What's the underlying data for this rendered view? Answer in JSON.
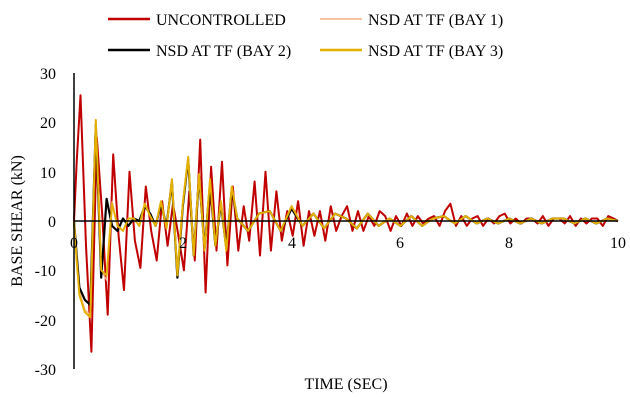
{
  "chart_data": {
    "type": "line",
    "title": "",
    "xlabel": "TIME (SEC)",
    "ylabel": "BASE SHEAR (kN)",
    "xlim": [
      0,
      10
    ],
    "ylim": [
      -30,
      30
    ],
    "x_ticks": [
      0,
      2,
      4,
      6,
      8,
      10
    ],
    "y_ticks": [
      30,
      20,
      10,
      0,
      -10,
      -20,
      -30
    ],
    "x_tick_labels": [
      "0",
      "2",
      "4",
      "6",
      "8",
      "10"
    ],
    "y_tick_labels": [
      "30",
      "20",
      "10",
      "0",
      "-10",
      "-20",
      "-30"
    ],
    "grid": false,
    "legend_position": "top",
    "series": [
      {
        "name": "UNCONTROLLED",
        "color": "#c00000",
        "x": [
          0,
          0.05,
          0.12,
          0.22,
          0.32,
          0.42,
          0.52,
          0.62,
          0.72,
          0.82,
          0.92,
          1.02,
          1.12,
          1.22,
          1.32,
          1.42,
          1.52,
          1.62,
          1.72,
          1.82,
          1.92,
          2.02,
          2.12,
          2.22,
          2.32,
          2.42,
          2.52,
          2.62,
          2.72,
          2.82,
          2.92,
          3.02,
          3.12,
          3.22,
          3.32,
          3.42,
          3.52,
          3.62,
          3.72,
          3.82,
          3.92,
          4.02,
          4.12,
          4.22,
          4.32,
          4.42,
          4.52,
          4.62,
          4.72,
          4.82,
          4.92,
          5.02,
          5.12,
          5.22,
          5.32,
          5.42,
          5.52,
          5.62,
          5.72,
          5.82,
          5.92,
          6.02,
          6.12,
          6.22,
          6.32,
          6.42,
          6.52,
          6.62,
          6.72,
          6.82,
          6.92,
          7.02,
          7.12,
          7.22,
          7.32,
          7.42,
          7.52,
          7.62,
          7.72,
          7.82,
          7.92,
          8.02,
          8.12,
          8.22,
          8.32,
          8.42,
          8.52,
          8.62,
          8.72,
          8.82,
          8.92,
          9.02,
          9.12,
          9.22,
          9.32,
          9.42,
          9.52,
          9.62,
          9.72,
          9.82,
          9.92,
          10.0
        ],
        "y": [
          0,
          12,
          25.5,
          -5,
          -26.5,
          17,
          1,
          -19,
          13.5,
          -3,
          -14,
          10,
          -4,
          -9.5,
          7,
          -2,
          -8,
          4,
          -5,
          3.5,
          -3,
          -10,
          6,
          -8,
          16.5,
          -14.5,
          11,
          -6,
          12,
          -9,
          7,
          -6,
          3,
          -4,
          8,
          -7,
          10,
          -6,
          6,
          -4,
          2,
          -3,
          4,
          -5,
          2,
          -3,
          2,
          -4,
          3,
          -2,
          1,
          3,
          -2,
          2,
          -2,
          1,
          -1,
          2,
          1,
          -2,
          1,
          -1,
          1.5,
          -1,
          1,
          -0.5,
          0.5,
          1,
          -1,
          2,
          3.5,
          -1,
          1,
          -1,
          0.5,
          1,
          -1,
          0.5,
          -0.5,
          1,
          1.5,
          -0.5,
          0.5,
          -0.5,
          0.5,
          0.5,
          -0.5,
          1,
          -1,
          0.5,
          0.5,
          -0.5,
          1,
          -1,
          0.5,
          -0.5,
          0.5,
          0.5,
          -1,
          1,
          0.5,
          0
        ]
      },
      {
        "name": "NSD AT TF (BAY 1)",
        "color": "#f4b183",
        "x": [
          0,
          0.05,
          0.1,
          0.2,
          0.3,
          0.4,
          0.5,
          0.6,
          0.7,
          0.8,
          0.9,
          1.0,
          1.1,
          1.2,
          1.3,
          1.4,
          1.5,
          1.6,
          1.7,
          1.8,
          1.9,
          2.0,
          2.1,
          2.2,
          2.3,
          2.4,
          2.5,
          2.6,
          2.7,
          2.8,
          2.9,
          3.0,
          3.2,
          3.4,
          3.6,
          3.8,
          4.0,
          4.2,
          4.4,
          4.6,
          4.8,
          5.0,
          5.2,
          5.4,
          5.6,
          5.8,
          6.0,
          6.2,
          6.4,
          6.6,
          6.8,
          7.0,
          7.2,
          7.4,
          7.6,
          7.8,
          8.0,
          8.2,
          8.4,
          8.6,
          8.8,
          9.0,
          9.2,
          9.4,
          9.6,
          9.8,
          10.0
        ],
        "y": [
          0,
          -8,
          -14,
          -18,
          -19,
          20,
          -10,
          -12,
          4,
          -1,
          -2,
          0.5,
          0.5,
          -1,
          3.5,
          1,
          -1,
          4,
          -1,
          8.5,
          -11,
          3.5,
          13,
          -7,
          9.5,
          -6,
          8,
          -5,
          4,
          -6,
          7,
          0.5,
          -2,
          1.5,
          2,
          -2,
          3,
          -1,
          1.5,
          -1.5,
          1.5,
          0.5,
          -1.5,
          1.5,
          -1,
          0.5,
          -1,
          1,
          -1,
          0.5,
          1,
          -0.5,
          1,
          -0.5,
          0.5,
          -0.5,
          0.5,
          -0.5,
          0.5,
          -0.5,
          0.5,
          0.5,
          -0.5,
          0.5,
          -0.5,
          0.5,
          0
        ]
      },
      {
        "name": "NSD AT TF (BAY 2)",
        "color": "#000000",
        "x": [
          0,
          0.05,
          0.1,
          0.2,
          0.3,
          0.4,
          0.5,
          0.6,
          0.7,
          0.8,
          0.9,
          1.0,
          1.1,
          1.2,
          1.3,
          1.4,
          1.5,
          1.6,
          1.7,
          1.8,
          1.9,
          2.0,
          2.1,
          2.2,
          2.3,
          2.4,
          2.5,
          2.6,
          2.7,
          2.8,
          2.9,
          3.0,
          3.2,
          3.4,
          3.6,
          3.8,
          4.0,
          4.2,
          4.4,
          4.6,
          4.8,
          5.0,
          5.2,
          5.4,
          5.6,
          5.8,
          6.0,
          6.2,
          6.4,
          6.6,
          6.8,
          7.0,
          7.2,
          7.4,
          7.6,
          7.8,
          8.0,
          8.2,
          8.4,
          8.6,
          8.8,
          9.0,
          9.2,
          9.4,
          9.6,
          9.8,
          10.0
        ],
        "y": [
          0,
          -7,
          -13.5,
          -16,
          -17,
          19.5,
          -11.5,
          4.5,
          -1,
          -2,
          0.5,
          -1,
          0.5,
          0,
          3,
          1.5,
          -1,
          3.5,
          -1,
          8,
          -11.5,
          3,
          12.5,
          -7,
          9,
          -5.5,
          7.5,
          -5,
          3.5,
          -5.5,
          6.5,
          0.5,
          -2,
          1.5,
          2,
          -2,
          2.5,
          -1,
          1.5,
          -1.5,
          1.5,
          0.5,
          -1.5,
          1.5,
          -1,
          0.5,
          -1,
          1,
          -1,
          0.5,
          1,
          -0.5,
          1,
          -0.5,
          0.5,
          -0.5,
          0.5,
          -0.5,
          0.5,
          -0.5,
          0.5,
          0.5,
          -0.5,
          0.5,
          -0.5,
          0.5,
          0
        ]
      },
      {
        "name": "NSD AT TF (BAY 3)",
        "color": "#e5b000",
        "x": [
          0,
          0.05,
          0.1,
          0.2,
          0.3,
          0.4,
          0.5,
          0.6,
          0.7,
          0.8,
          0.9,
          1.0,
          1.1,
          1.2,
          1.3,
          1.4,
          1.5,
          1.6,
          1.7,
          1.8,
          1.9,
          2.0,
          2.1,
          2.2,
          2.3,
          2.4,
          2.5,
          2.6,
          2.7,
          2.8,
          2.9,
          3.0,
          3.2,
          3.4,
          3.6,
          3.8,
          4.0,
          4.2,
          4.4,
          4.6,
          4.8,
          5.0,
          5.2,
          5.4,
          5.6,
          5.8,
          6.0,
          6.2,
          6.4,
          6.6,
          6.8,
          7.0,
          7.2,
          7.4,
          7.6,
          7.8,
          8.0,
          8.2,
          8.4,
          8.6,
          8.8,
          9.0,
          9.2,
          9.4,
          9.6,
          9.8,
          10.0
        ],
        "y": [
          0,
          -8,
          -15,
          -18.5,
          -19.5,
          20.5,
          -10,
          -11,
          3.5,
          -1,
          -2,
          0.5,
          0.5,
          -1,
          3.5,
          1,
          -1,
          4,
          -1.5,
          8.5,
          -11,
          3.5,
          13,
          -7,
          9.5,
          -6,
          8.5,
          -5,
          4,
          -6,
          7,
          0.5,
          -2,
          1.5,
          2,
          -2,
          3,
          -1,
          1.5,
          -1.5,
          1.5,
          0.5,
          -1.5,
          1.5,
          -1,
          0.5,
          -1,
          1,
          -1,
          0.5,
          1,
          -0.5,
          1,
          -0.5,
          0.5,
          -0.5,
          0.5,
          -0.5,
          0.5,
          -0.5,
          0.5,
          0.5,
          -0.5,
          0.5,
          -0.5,
          0.5,
          0
        ]
      }
    ]
  }
}
